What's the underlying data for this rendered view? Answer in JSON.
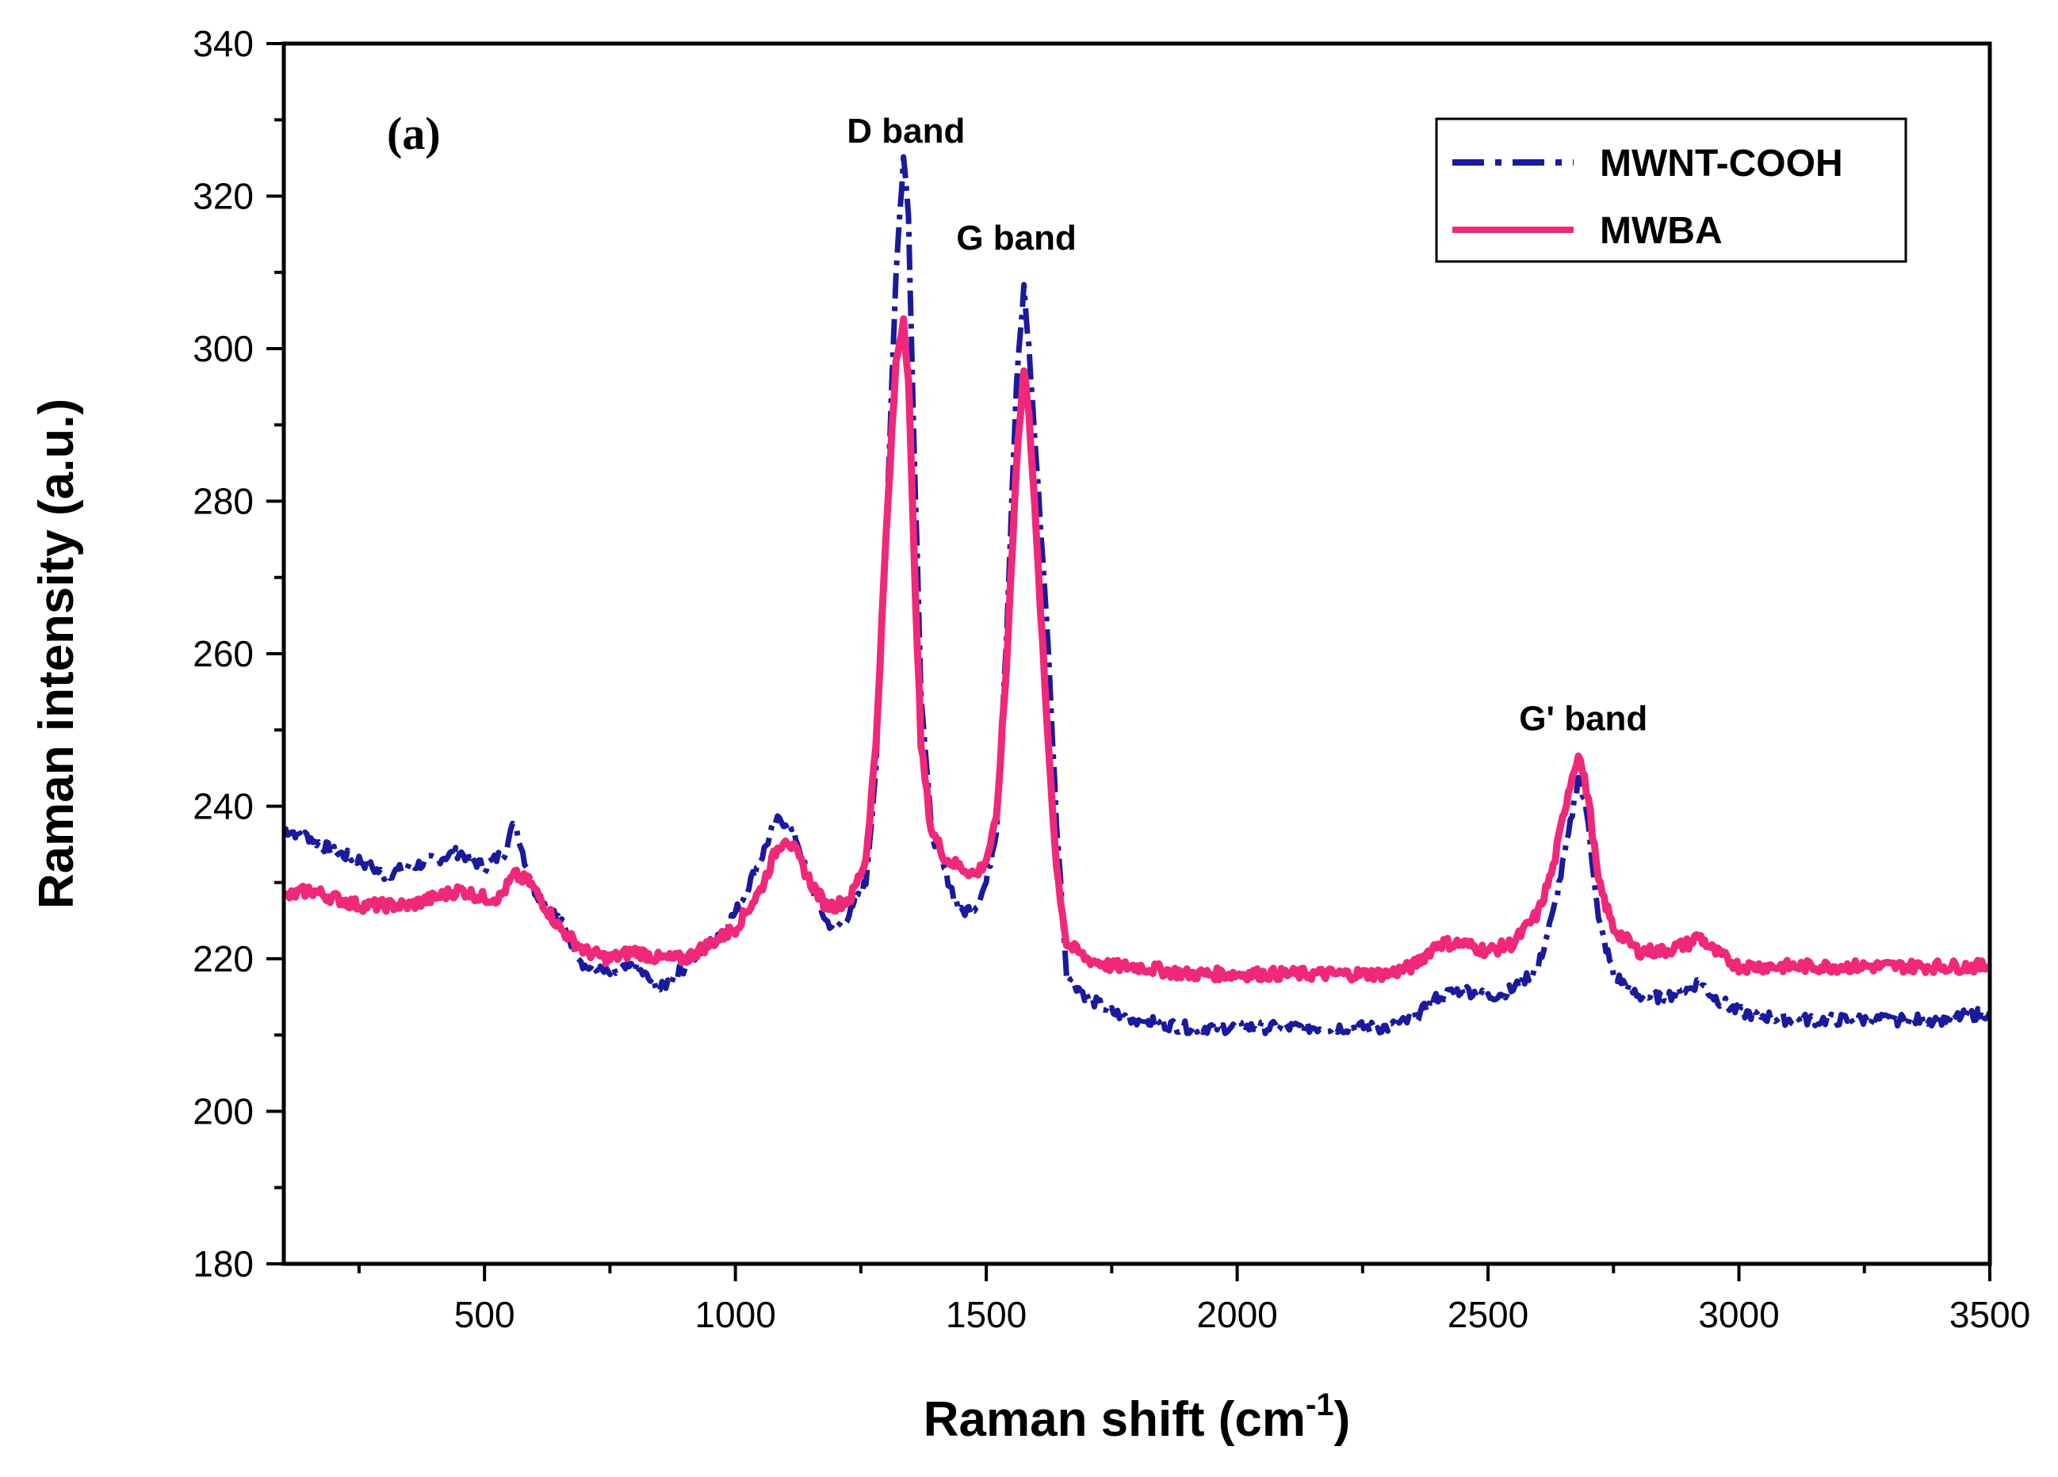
{
  "chart_data": {
    "type": "line",
    "title": "",
    "panel_label": "(a)",
    "xlabel": "Raman shift (cm",
    "xlabel_sup": "-1",
    "xlabel_end": ")",
    "ylabel": "Raman intensity (a.u.)",
    "xlim": [
      100,
      3500
    ],
    "ylim": [
      180,
      340
    ],
    "x_ticks": [
      500,
      1000,
      1500,
      2000,
      2500,
      3000,
      3500
    ],
    "y_ticks": [
      180,
      200,
      220,
      240,
      260,
      280,
      300,
      320,
      340
    ],
    "x_tick_labels": [
      "500",
      "1000",
      "1500",
      "2000",
      "2500",
      "3000",
      "3500"
    ],
    "y_tick_labels": [
      "180",
      "200",
      "220",
      "240",
      "260",
      "280",
      "300",
      "320",
      "340"
    ],
    "legend_position": "top-right",
    "annotations": [
      {
        "text": "D band",
        "x": 1340,
        "y": 327
      },
      {
        "text": "G band",
        "x": 1560,
        "y": 313
      },
      {
        "text": "G' band",
        "x": 2690,
        "y": 250
      }
    ],
    "series": [
      {
        "name": "MWNT-COOH",
        "color": "#1a1a9c",
        "style": "dash-dot",
        "x": [
          100,
          150,
          200,
          250,
          300,
          350,
          400,
          450,
          500,
          540,
          560,
          580,
          600,
          650,
          700,
          750,
          800,
          850,
          900,
          950,
          1000,
          1050,
          1080,
          1100,
          1120,
          1150,
          1180,
          1200,
          1230,
          1260,
          1280,
          1300,
          1320,
          1335,
          1345,
          1355,
          1370,
          1390,
          1420,
          1450,
          1480,
          1500,
          1520,
          1540,
          1560,
          1575,
          1585,
          1600,
          1620,
          1640,
          1660,
          1700,
          1750,
          1800,
          1900,
          2000,
          2100,
          2200,
          2300,
          2350,
          2400,
          2450,
          2500,
          2550,
          2600,
          2630,
          2660,
          2680,
          2700,
          2720,
          2750,
          2800,
          2850,
          2900,
          2920,
          2950,
          3000,
          3100,
          3200,
          3300,
          3400,
          3500
        ],
        "y": [
          237,
          236,
          234,
          233,
          231,
          232,
          233,
          234,
          232,
          234,
          238,
          233,
          229,
          225,
          219,
          218,
          219,
          216,
          219,
          222,
          226,
          233,
          238,
          238,
          236,
          230,
          225,
          224,
          226,
          230,
          245,
          275,
          310,
          325,
          318,
          290,
          255,
          237,
          231,
          226,
          227,
          230,
          237,
          262,
          295,
          308,
          300,
          285,
          265,
          238,
          218,
          215,
          213,
          212,
          211,
          211,
          211,
          211,
          211,
          212,
          215,
          216,
          215,
          216,
          219,
          226,
          236,
          244,
          238,
          225,
          218,
          215,
          215,
          216,
          217,
          215,
          213,
          212,
          212,
          212,
          212,
          213
        ]
      },
      {
        "name": "MWBA",
        "color": "#f0287a",
        "style": "solid",
        "x": [
          100,
          150,
          200,
          250,
          300,
          350,
          400,
          450,
          500,
          530,
          560,
          590,
          620,
          650,
          700,
          750,
          800,
          850,
          900,
          950,
          1000,
          1050,
          1080,
          1100,
          1120,
          1150,
          1180,
          1200,
          1230,
          1260,
          1280,
          1300,
          1320,
          1335,
          1345,
          1355,
          1370,
          1390,
          1420,
          1450,
          1480,
          1500,
          1520,
          1540,
          1560,
          1575,
          1585,
          1600,
          1620,
          1640,
          1660,
          1700,
          1750,
          1800,
          1900,
          2000,
          2100,
          2200,
          2300,
          2350,
          2400,
          2450,
          2500,
          2550,
          2600,
          2630,
          2660,
          2680,
          2700,
          2720,
          2750,
          2800,
          2850,
          2900,
          2920,
          2950,
          3000,
          3100,
          3200,
          3300,
          3400,
          3500
        ],
        "y": [
          228,
          229,
          228,
          227,
          227,
          227,
          228,
          229,
          228,
          228,
          231,
          230,
          227,
          224,
          221,
          220,
          221,
          220,
          220,
          222,
          224,
          229,
          234,
          236,
          234,
          230,
          227,
          227,
          228,
          233,
          248,
          275,
          298,
          304,
          296,
          275,
          248,
          237,
          233,
          232,
          231,
          233,
          238,
          258,
          285,
          297,
          292,
          275,
          252,
          232,
          222,
          220,
          219,
          219,
          218,
          218,
          218,
          218,
          218,
          219,
          222,
          222,
          221,
          222,
          226,
          232,
          242,
          247,
          241,
          230,
          224,
          221,
          221,
          222,
          223,
          221,
          219,
          219,
          219,
          219,
          219,
          219
        ]
      }
    ]
  }
}
